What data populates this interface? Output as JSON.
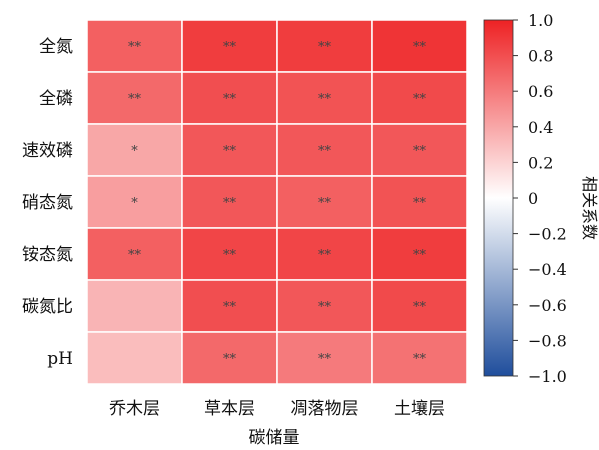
{
  "chart_data": {
    "type": "heatmap",
    "rows": [
      "全氮",
      "全磷",
      "速效磷",
      "硝态氮",
      "铵态氮",
      "碳氮比",
      "pH"
    ],
    "columns": [
      "乔木层",
      "草本层",
      "凋落物层",
      "土壤层"
    ],
    "xlabel": "碳储量",
    "colorbar_label": "相关系数",
    "colorbar_range": [
      -1.0,
      1.0
    ],
    "colorbar_ticks": [
      "1.0",
      "0.8",
      "0.6",
      "0.4",
      "0.2",
      "0",
      "−0.2",
      "−0.4",
      "−0.6",
      "−0.8",
      "−1.0"
    ],
    "colormap": {
      "negative": "#1f4e9c",
      "zero": "#ffffff",
      "positive": "#ee2224"
    },
    "values": [
      [
        0.72,
        0.88,
        0.88,
        0.92
      ],
      [
        0.68,
        0.8,
        0.78,
        0.82
      ],
      [
        0.4,
        0.76,
        0.76,
        0.76
      ],
      [
        0.44,
        0.76,
        0.72,
        0.78
      ],
      [
        0.72,
        0.84,
        0.84,
        0.88
      ],
      [
        0.34,
        0.8,
        0.76,
        0.82
      ],
      [
        0.3,
        0.68,
        0.6,
        0.64
      ]
    ],
    "significance": [
      [
        "**",
        "**",
        "**",
        "**"
      ],
      [
        "**",
        "**",
        "**",
        "**"
      ],
      [
        "*",
        "**",
        "**",
        "**"
      ],
      [
        "*",
        "**",
        "**",
        "**"
      ],
      [
        "**",
        "**",
        "**",
        "**"
      ],
      [
        "",
        "**",
        "**",
        "**"
      ],
      [
        "",
        "**",
        "**",
        "**"
      ]
    ]
  }
}
